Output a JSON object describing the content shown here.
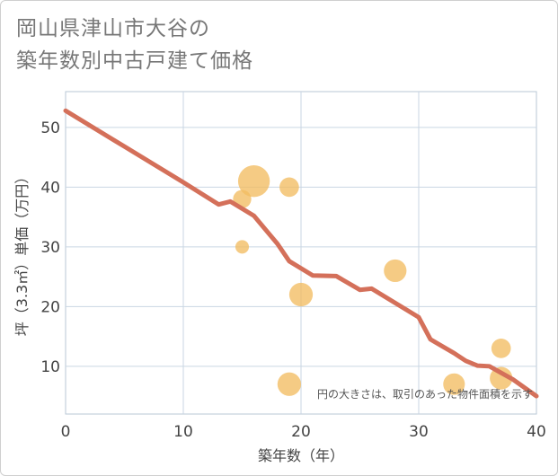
{
  "chart_data": {
    "type": "scatter",
    "title_lines": [
      "岡山県津山市大谷の",
      "築年数別中古戸建て価格"
    ],
    "xlabel": "築年数（年）",
    "ylabel": "坪（3.3㎡）単価（万円）",
    "xlim": [
      0,
      40
    ],
    "ylim": [
      2,
      56
    ],
    "xticks": [
      0,
      10,
      20,
      30,
      40
    ],
    "yticks": [
      10,
      20,
      30,
      40,
      50
    ],
    "grid": true,
    "annotation": "円の大きさは、取引のあった物件面積を示す",
    "colors": {
      "bubble": "#f2bd62",
      "trend": "#d4705a",
      "axis_text": "#444444",
      "grid": "#c9d6e3"
    },
    "bubbles": [
      {
        "x": 15,
        "y": 30,
        "size": 2
      },
      {
        "x": 15,
        "y": 38,
        "size": 5
      },
      {
        "x": 16,
        "y": 41,
        "size": 21
      },
      {
        "x": 19,
        "y": 40,
        "size": 6
      },
      {
        "x": 20,
        "y": 22,
        "size": 10
      },
      {
        "x": 19,
        "y": 7,
        "size": 10
      },
      {
        "x": 28,
        "y": 26,
        "size": 9
      },
      {
        "x": 33,
        "y": 7,
        "size": 8
      },
      {
        "x": 37,
        "y": 13,
        "size": 6
      },
      {
        "x": 37,
        "y": 8,
        "size": 9
      }
    ],
    "trend_line": {
      "x": [
        0,
        5,
        10,
        13,
        14,
        16,
        18,
        19,
        21,
        23,
        25,
        26,
        30,
        31,
        33,
        34,
        35,
        36,
        38,
        40
      ],
      "y": [
        52.8,
        46.8,
        40.8,
        37.1,
        37.6,
        35.2,
        30.5,
        27.6,
        25.2,
        25.1,
        22.8,
        23.0,
        18.2,
        14.5,
        12.2,
        10.9,
        10.1,
        10.0,
        7.8,
        5.0
      ]
    }
  }
}
